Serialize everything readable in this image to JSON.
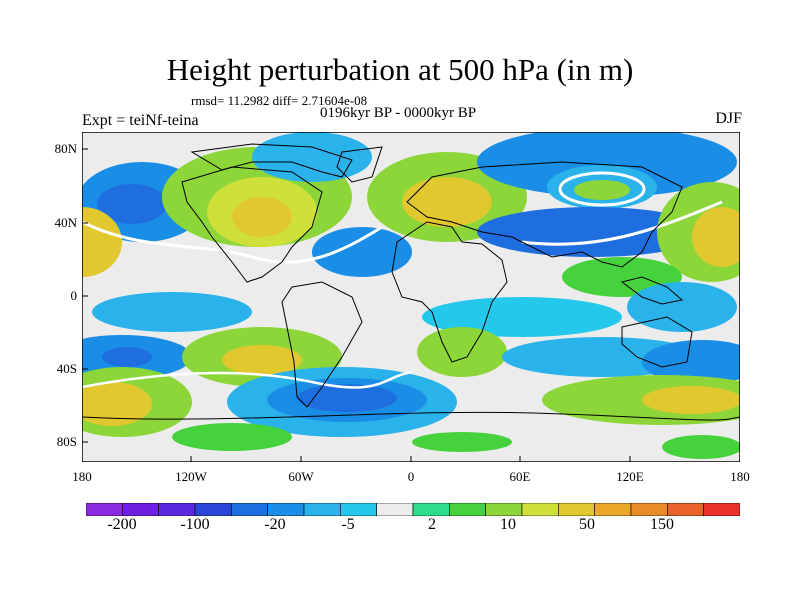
{
  "title": "Height perturbation at 500 hPa (in m)",
  "stats_text": "rmsd= 11.2982 diff= 2.71604e-08",
  "period_text": "0196kyr BP - 0000kyr BP",
  "experiment_text": "Expt = teiNf-teina",
  "season_text": "DJF",
  "axes": {
    "lat_ticks": [
      "80N",
      "40N",
      "0",
      "40S",
      "80S"
    ],
    "lon_ticks": [
      "180",
      "120W",
      "60W",
      "0",
      "60E",
      "120E",
      "180"
    ]
  },
  "colorbar": {
    "colors": [
      "#8a2be2",
      "#6f1fe0",
      "#5a2ae0",
      "#2a46d8",
      "#1e6ee0",
      "#1a8de6",
      "#2ab2ea",
      "#23c8ea",
      "#ececec",
      "#2ddc8a",
      "#46d23c",
      "#8cd639",
      "#cfe03a",
      "#e0c82e",
      "#eaa72a",
      "#ea8a2a",
      "#e8622a",
      "#e8322a"
    ],
    "labels": [
      "-200",
      "-100",
      "-20",
      "-5",
      "2",
      "10",
      "50",
      "150"
    ]
  },
  "palette": {
    "ocean_neutral": "#ececec",
    "blue_strong": "#1e6ee0",
    "blue_mid": "#1a8de6",
    "blue_light": "#2ab2ea",
    "cyan": "#23c8ea",
    "green": "#46d23c",
    "yellow_green": "#cfe03a",
    "orange": "#e0c82e",
    "contour_line": "#ffffff",
    "coastline": "#000000"
  }
}
